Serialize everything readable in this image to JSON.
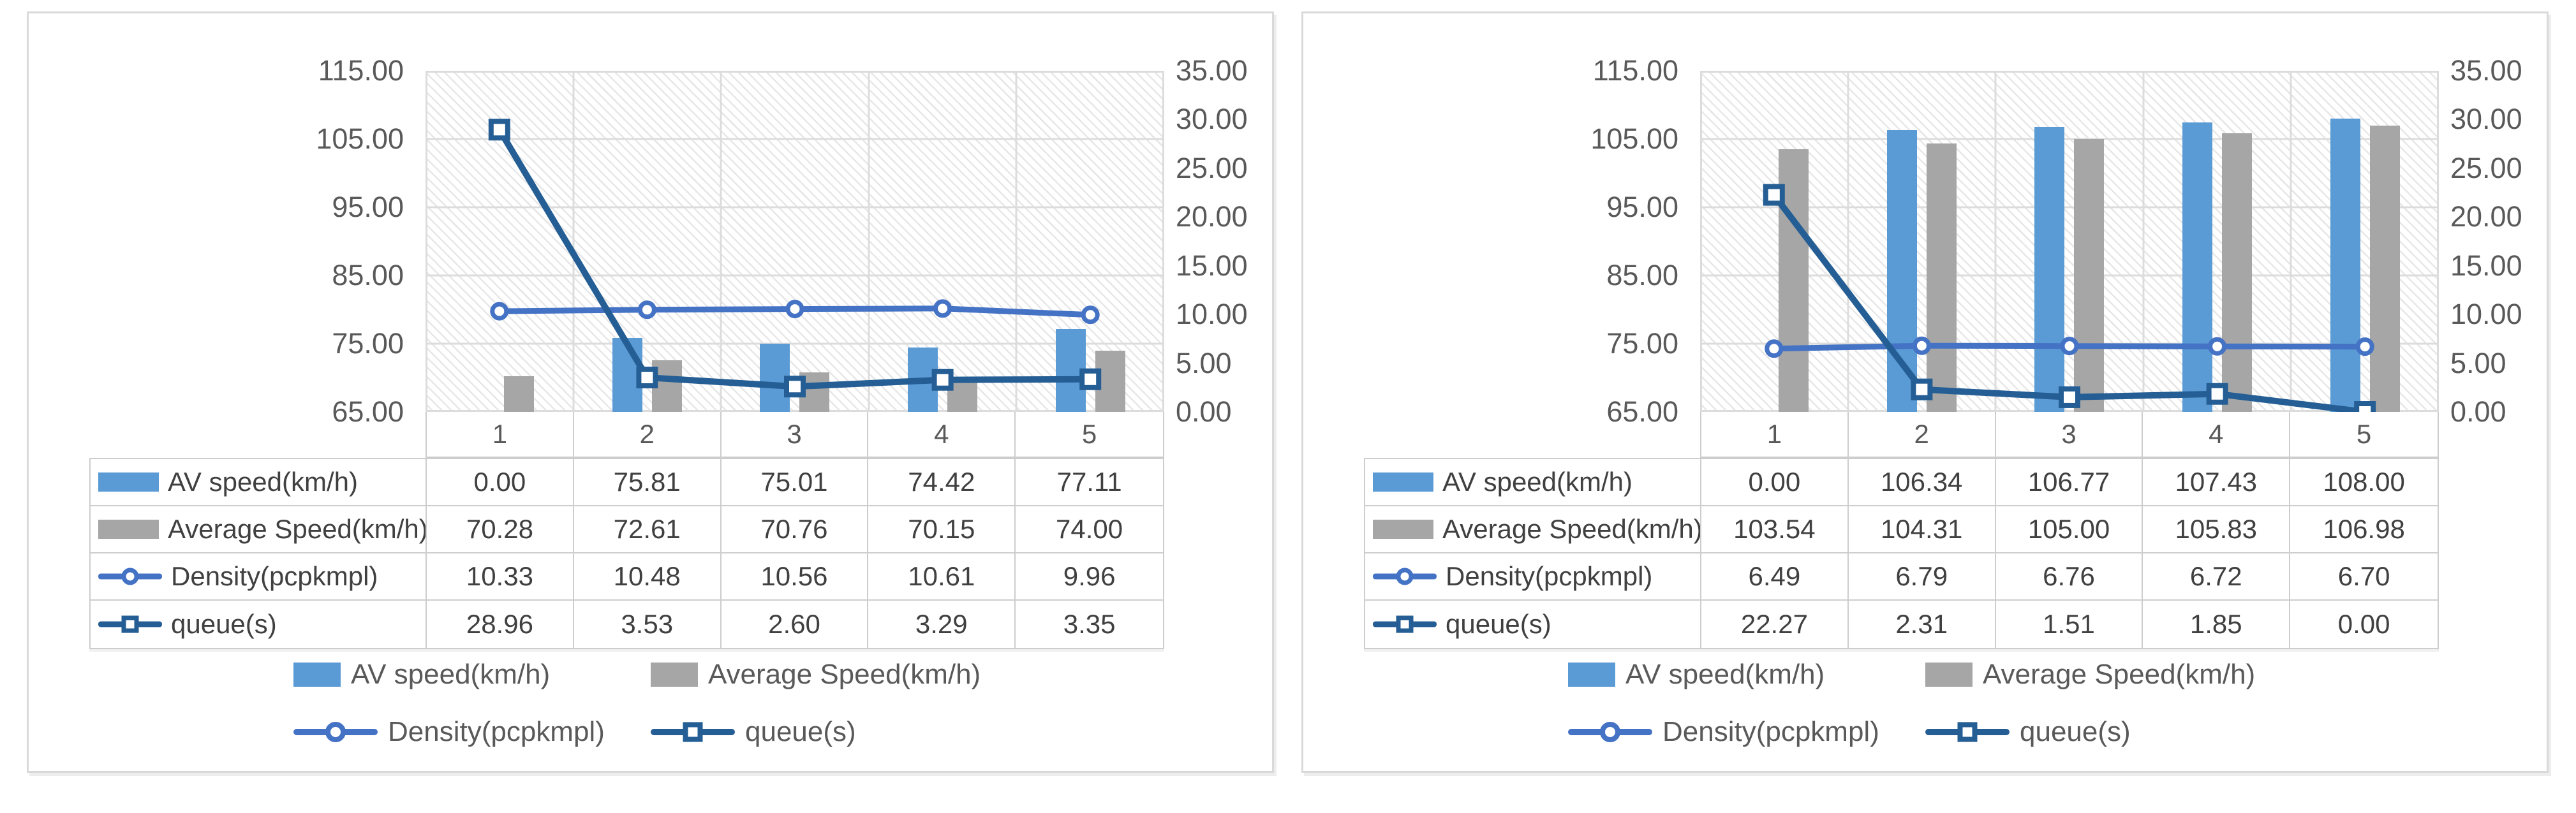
{
  "colors": {
    "av_bar": "#5B9BD5",
    "avg_bar": "#A6A6A6",
    "density_line": "#4472C4",
    "queue_line": "#245E94",
    "grid": "#DCDCDC",
    "axis_text": "#595959",
    "table_text": "#404040"
  },
  "axes": {
    "left_ticks": [
      "115.00",
      "105.00",
      "95.00",
      "85.00",
      "75.00",
      "65.00"
    ],
    "right_ticks": [
      "35.00",
      "30.00",
      "25.00",
      "20.00",
      "15.00",
      "10.00",
      "5.00",
      "0.00"
    ]
  },
  "legend": {
    "row1": [
      {
        "key": "av-bar",
        "label": "AV speed(km/h)"
      },
      {
        "key": "avg-bar",
        "label": "Average Speed(km/h)"
      }
    ],
    "row2": [
      {
        "key": "density-line",
        "label": "Density(pcpkmpl)"
      },
      {
        "key": "queue-line",
        "label": "queue(s)"
      }
    ]
  },
  "chart_data": [
    {
      "panel": "left",
      "type": "combo-bar-line",
      "categories": [
        "1",
        "2",
        "3",
        "4",
        "5"
      ],
      "left_axis": {
        "min": 65,
        "max": 115,
        "step": 10
      },
      "right_axis": {
        "min": 0,
        "max": 35,
        "step": 5
      },
      "grid": "on",
      "legend_position": "bottom",
      "series": [
        {
          "name": "AV speed(km/h)",
          "type": "bar",
          "axis": "left",
          "values": [
            0.0,
            75.81,
            75.01,
            74.42,
            77.11
          ],
          "display": [
            "0.00",
            "75.81",
            "75.01",
            "74.42",
            "77.11"
          ]
        },
        {
          "name": "Average Speed(km/h)",
          "type": "bar",
          "axis": "left",
          "values": [
            70.28,
            72.61,
            70.76,
            70.15,
            74.0
          ],
          "display": [
            "70.28",
            "72.61",
            "70.76",
            "70.15",
            "74.00"
          ]
        },
        {
          "name": "Density(pcpkmpl)",
          "type": "line",
          "marker": "circle",
          "axis": "right",
          "values": [
            10.33,
            10.48,
            10.56,
            10.61,
            9.96
          ],
          "display": [
            "10.33",
            "10.48",
            "10.56",
            "10.61",
            "9.96"
          ]
        },
        {
          "name": "queue(s)",
          "type": "line",
          "marker": "square",
          "axis": "right",
          "values": [
            28.96,
            3.53,
            2.6,
            3.29,
            3.35
          ],
          "display": [
            "28.96",
            "3.53",
            "2.60",
            "3.29",
            "3.35"
          ]
        }
      ]
    },
    {
      "panel": "right",
      "type": "combo-bar-line",
      "categories": [
        "1",
        "2",
        "3",
        "4",
        "5"
      ],
      "left_axis": {
        "min": 65,
        "max": 115,
        "step": 10
      },
      "right_axis": {
        "min": 0,
        "max": 35,
        "step": 5
      },
      "grid": "on",
      "legend_position": "bottom",
      "series": [
        {
          "name": "AV speed(km/h)",
          "type": "bar",
          "axis": "left",
          "values": [
            0.0,
            106.34,
            106.77,
            107.43,
            108.0
          ],
          "display": [
            "0.00",
            "106.34",
            "106.77",
            "107.43",
            "108.00"
          ]
        },
        {
          "name": "Average Speed(km/h)",
          "type": "bar",
          "axis": "left",
          "values": [
            103.54,
            104.31,
            105.0,
            105.83,
            106.98
          ],
          "display": [
            "103.54",
            "104.31",
            "105.00",
            "105.83",
            "106.98"
          ]
        },
        {
          "name": "Density(pcpkmpl)",
          "type": "line",
          "marker": "circle",
          "axis": "right",
          "values": [
            6.49,
            6.79,
            6.76,
            6.72,
            6.7
          ],
          "display": [
            "6.49",
            "6.79",
            "6.76",
            "6.72",
            "6.70"
          ]
        },
        {
          "name": "queue(s)",
          "type": "line",
          "marker": "square",
          "axis": "right",
          "values": [
            22.27,
            2.31,
            1.51,
            1.85,
            0.0
          ],
          "display": [
            "22.27",
            "2.31",
            "1.51",
            "1.85",
            "0.00"
          ]
        }
      ]
    }
  ]
}
